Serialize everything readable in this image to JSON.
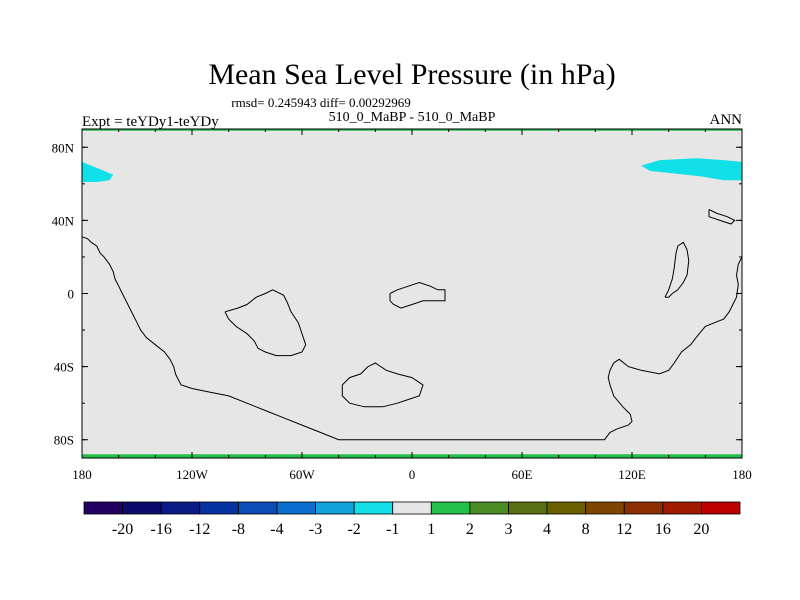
{
  "chart_data": {
    "type": "heatmap",
    "title": "Mean Sea Level Pressure (in hPa)",
    "stats_line": "rmsd= 0.245943 diff= 0.00292969",
    "left_label": "Expt = teYDy1-teYDy",
    "center_label": "510_0_MaBP - 510_0_MaBP",
    "right_label": "ANN",
    "xlim": [
      -180,
      180
    ],
    "ylim": [
      -90,
      90
    ],
    "x_ticks": [
      {
        "value": -180,
        "label": "180"
      },
      {
        "value": -120,
        "label": "120W"
      },
      {
        "value": -60,
        "label": "60W"
      },
      {
        "value": 0,
        "label": "0"
      },
      {
        "value": 60,
        "label": "60E"
      },
      {
        "value": 120,
        "label": "120E"
      },
      {
        "value": 180,
        "label": "180"
      }
    ],
    "y_ticks": [
      {
        "value": 80,
        "label": "80N"
      },
      {
        "value": 40,
        "label": "40N"
      },
      {
        "value": 0,
        "label": "0"
      },
      {
        "value": -40,
        "label": "40S"
      },
      {
        "value": -80,
        "label": "80S"
      }
    ],
    "background_color": "#e6e6e6",
    "colorbar": {
      "colors": [
        "#230064",
        "#0b0b6e",
        "#0a1a87",
        "#0633a0",
        "#0a4db5",
        "#0a6ecf",
        "#10a2d8",
        "#11e0e8",
        "#e6e6e6",
        "#21c04a",
        "#4a8b23",
        "#5a7010",
        "#6b5f00",
        "#7d4600",
        "#8c2e00",
        "#a01a00",
        "#bf0000"
      ],
      "labels": [
        "-20",
        "-16",
        "-12",
        "-8",
        "-4",
        "-3",
        "-2",
        "-1",
        "1",
        "2",
        "3",
        "4",
        "8",
        "12",
        "16",
        "20"
      ]
    },
    "anomaly_regions": [
      {
        "color": "#11e0e8",
        "points": [
          [
            -180,
            72
          ],
          [
            -175,
            70
          ],
          [
            -170,
            68
          ],
          [
            -163,
            65
          ],
          [
            -165,
            62
          ],
          [
            -172,
            61
          ],
          [
            -180,
            61
          ]
        ]
      },
      {
        "color": "#11e0e8",
        "points": [
          [
            125,
            70
          ],
          [
            135,
            73
          ],
          [
            155,
            74
          ],
          [
            170,
            73
          ],
          [
            180,
            72
          ],
          [
            180,
            62
          ],
          [
            170,
            62
          ],
          [
            158,
            64
          ],
          [
            140,
            66
          ],
          [
            130,
            67
          ]
        ]
      },
      {
        "color": "#21c04a",
        "points": [
          [
            -180,
            -88
          ],
          [
            180,
            -88
          ],
          [
            180,
            -90
          ],
          [
            -180,
            -90
          ]
        ]
      },
      {
        "color": "#21c04a",
        "points": [
          [
            -180,
            90
          ],
          [
            180,
            90
          ],
          [
            180,
            89
          ],
          [
            -180,
            89
          ]
        ]
      }
    ],
    "coastlines": [
      [
        [
          -180,
          31
        ],
        [
          -177,
          30
        ],
        [
          -175,
          28
        ],
        [
          -172,
          26
        ],
        [
          -170,
          22
        ],
        [
          -168,
          20
        ],
        [
          -165,
          16
        ],
        [
          -163,
          12
        ],
        [
          -162,
          8
        ],
        [
          -160,
          4
        ],
        [
          -158,
          0
        ],
        [
          -156,
          -4
        ],
        [
          -154,
          -8
        ],
        [
          -152,
          -12
        ],
        [
          -150,
          -16
        ],
        [
          -148,
          -20
        ],
        [
          -145,
          -24
        ],
        [
          -140,
          -28
        ],
        [
          -135,
          -32
        ],
        [
          -132,
          -36
        ],
        [
          -130,
          -40
        ],
        [
          -129,
          -44
        ],
        [
          -128,
          -46
        ],
        [
          -126,
          -50
        ],
        [
          -120,
          -52
        ],
        [
          -110,
          -54
        ],
        [
          -100,
          -56
        ],
        [
          -90,
          -60
        ],
        [
          -80,
          -64
        ],
        [
          -70,
          -68
        ],
        [
          -60,
          -72
        ],
        [
          -50,
          -76
        ],
        [
          -40,
          -80
        ],
        [
          0,
          -80
        ],
        [
          60,
          -80
        ],
        [
          105,
          -80
        ],
        [
          108,
          -76
        ],
        [
          112,
          -74
        ],
        [
          118,
          -72
        ],
        [
          120,
          -70
        ],
        [
          119,
          -66
        ],
        [
          115,
          -62
        ],
        [
          110,
          -56
        ],
        [
          108,
          -50
        ],
        [
          107,
          -46
        ],
        [
          108,
          -42
        ],
        [
          110,
          -38
        ],
        [
          113,
          -36
        ],
        [
          118,
          -40
        ],
        [
          125,
          -42
        ],
        [
          135,
          -44
        ],
        [
          140,
          -42
        ],
        [
          143,
          -38
        ],
        [
          147,
          -32
        ],
        [
          152,
          -28
        ],
        [
          155,
          -24
        ],
        [
          160,
          -18
        ],
        [
          165,
          -16
        ],
        [
          170,
          -14
        ],
        [
          173,
          -10
        ],
        [
          175,
          -6
        ],
        [
          177,
          -2
        ],
        [
          178,
          5
        ],
        [
          177,
          10
        ],
        [
          178,
          16
        ],
        [
          180,
          20
        ]
      ],
      [
        [
          -102,
          -10
        ],
        [
          -95,
          -8
        ],
        [
          -90,
          -6
        ],
        [
          -85,
          -2
        ],
        [
          -80,
          0
        ],
        [
          -76,
          2
        ],
        [
          -70,
          -1
        ],
        [
          -68,
          -5
        ],
        [
          -66,
          -10
        ],
        [
          -62,
          -16
        ],
        [
          -60,
          -22
        ],
        [
          -58,
          -28
        ],
        [
          -60,
          -32
        ],
        [
          -66,
          -34
        ],
        [
          -74,
          -34
        ],
        [
          -80,
          -32
        ],
        [
          -84,
          -30
        ],
        [
          -86,
          -26
        ],
        [
          -90,
          -22
        ],
        [
          -96,
          -18
        ],
        [
          -100,
          -14
        ],
        [
          -102,
          -10
        ]
      ],
      [
        [
          -12,
          0
        ],
        [
          -8,
          2
        ],
        [
          -2,
          4
        ],
        [
          4,
          6
        ],
        [
          10,
          4
        ],
        [
          14,
          2
        ],
        [
          18,
          2
        ],
        [
          18,
          -4
        ],
        [
          12,
          -4
        ],
        [
          6,
          -4
        ],
        [
          0,
          -6
        ],
        [
          -6,
          -8
        ],
        [
          -10,
          -6
        ],
        [
          -12,
          -4
        ],
        [
          -12,
          0
        ]
      ],
      [
        [
          -38,
          -50
        ],
        [
          -34,
          -46
        ],
        [
          -28,
          -44
        ],
        [
          -24,
          -40
        ],
        [
          -20,
          -38
        ],
        [
          -14,
          -42
        ],
        [
          -8,
          -44
        ],
        [
          0,
          -46
        ],
        [
          6,
          -50
        ],
        [
          4,
          -56
        ],
        [
          -2,
          -58
        ],
        [
          -8,
          -60
        ],
        [
          -16,
          -62
        ],
        [
          -26,
          -62
        ],
        [
          -34,
          -60
        ],
        [
          -38,
          -56
        ],
        [
          -38,
          -50
        ]
      ],
      [
        [
          138,
          -2
        ],
        [
          140,
          2
        ],
        [
          142,
          8
        ],
        [
          143,
          14
        ],
        [
          144,
          22
        ],
        [
          145,
          26
        ],
        [
          148,
          28
        ],
        [
          150,
          24
        ],
        [
          151,
          18
        ],
        [
          150,
          10
        ],
        [
          148,
          6
        ],
        [
          145,
          2
        ],
        [
          142,
          0
        ],
        [
          140,
          -2
        ],
        [
          138,
          -2
        ]
      ],
      [
        [
          162,
          46
        ],
        [
          166,
          44
        ],
        [
          172,
          42
        ],
        [
          176,
          40
        ],
        [
          174,
          38
        ],
        [
          168,
          40
        ],
        [
          162,
          42
        ],
        [
          162,
          46
        ]
      ]
    ]
  }
}
